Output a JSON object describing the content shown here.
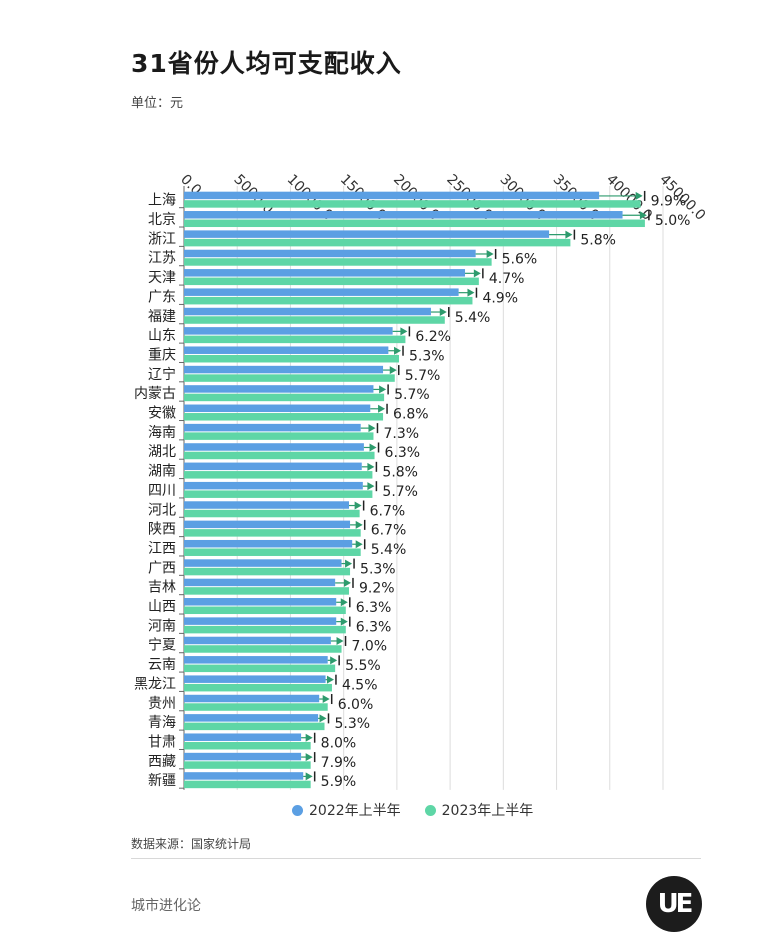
{
  "title": "31省份人均可支配收入",
  "unit": "单位：元",
  "source": "数据来源：国家统计局",
  "brand": "城市进化论",
  "logo_text": "UE",
  "colors": {
    "series_2022": "#5b9fe3",
    "series_2023": "#5ed6a6",
    "marker": "#2d9b6d"
  },
  "legend": {
    "s2022": "2022年上半年",
    "s2023": "2023年上半年"
  },
  "chart_data": {
    "type": "bar",
    "orientation": "horizontal",
    "title": "31省份人均可支配收入",
    "unit": "元",
    "xlim": [
      0,
      45000
    ],
    "x_ticks": [
      "0.0",
      "5000.0",
      "10000.0",
      "15000.0",
      "20000.0",
      "25000.0",
      "30000.0",
      "35000.0",
      "40000.0",
      "45000.0"
    ],
    "grid": true,
    "legend_position": "bottom",
    "categories": [
      "上海",
      "北京",
      "浙江",
      "江苏",
      "天津",
      "广东",
      "福建",
      "山东",
      "重庆",
      "辽宁",
      "内蒙古",
      "安徽",
      "海南",
      "湖北",
      "湖南",
      "四川",
      "河北",
      "陕西",
      "江西",
      "广西",
      "吉林",
      "山西",
      "河南",
      "宁夏",
      "云南",
      "黑龙江",
      "贵州",
      "青海",
      "甘肃",
      "西藏",
      "新疆"
    ],
    "series": [
      {
        "name": "2022年上半年",
        "values": [
          39000,
          41200,
          34300,
          27400,
          26400,
          25800,
          23200,
          19600,
          19200,
          18700,
          17800,
          17500,
          16600,
          16900,
          16700,
          16800,
          15500,
          15600,
          15800,
          14800,
          14200,
          14300,
          14300,
          13800,
          13500,
          13300,
          12700,
          12600,
          11000,
          11000,
          11200
        ]
      },
      {
        "name": "2023年上半年",
        "values": [
          42900,
          43300,
          36300,
          28900,
          27700,
          27100,
          24500,
          20800,
          20200,
          19800,
          18800,
          18700,
          17800,
          17900,
          17700,
          17700,
          16500,
          16600,
          16600,
          15600,
          15500,
          15200,
          15200,
          14800,
          14200,
          13900,
          13500,
          13200,
          11900,
          11900,
          11900
        ]
      }
    ],
    "growth_labels": [
      "9.9%",
      "5.0%",
      "5.8%",
      "5.6%",
      "4.7%",
      "4.9%",
      "5.4%",
      "6.2%",
      "5.3%",
      "5.7%",
      "5.7%",
      "6.8%",
      "7.3%",
      "6.3%",
      "5.8%",
      "5.7%",
      "6.7%",
      "6.7%",
      "5.4%",
      "5.3%",
      "9.2%",
      "6.3%",
      "6.3%",
      "7.0%",
      "5.5%",
      "4.5%",
      "6.0%",
      "5.3%",
      "8.0%",
      "7.9%",
      "5.9%"
    ]
  }
}
